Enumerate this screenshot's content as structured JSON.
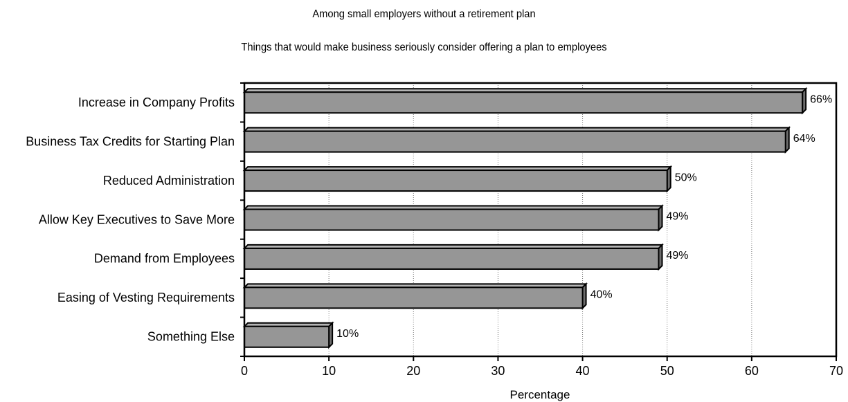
{
  "chart_data": {
    "type": "bar",
    "orientation": "horizontal",
    "title": "Among small employers without a retirement plan",
    "subtitle": "Things that would make business seriously consider offering a plan to employees",
    "categories": [
      "Increase in Company Profits",
      "Business Tax Credits for Starting Plan",
      "Reduced Administration",
      "Allow Key Executives to Save More",
      "Demand from Employees",
      "Easing of Vesting Requirements",
      "Something Else"
    ],
    "values": [
      66,
      64,
      50,
      49,
      49,
      40,
      10
    ],
    "data_labels": [
      "66%",
      "64%",
      "50%",
      "49%",
      "49%",
      "40%",
      "10%"
    ],
    "xlabel": "Percentage",
    "ylabel": "",
    "xlim": [
      0,
      70
    ],
    "xticks": [
      0,
      10,
      20,
      30,
      40,
      50,
      60,
      70
    ],
    "grid": "vertical dotted",
    "legend": "none",
    "colors": {
      "bar_fill": "#969696",
      "bar_outline": "#000000",
      "grid": "#777777"
    }
  }
}
